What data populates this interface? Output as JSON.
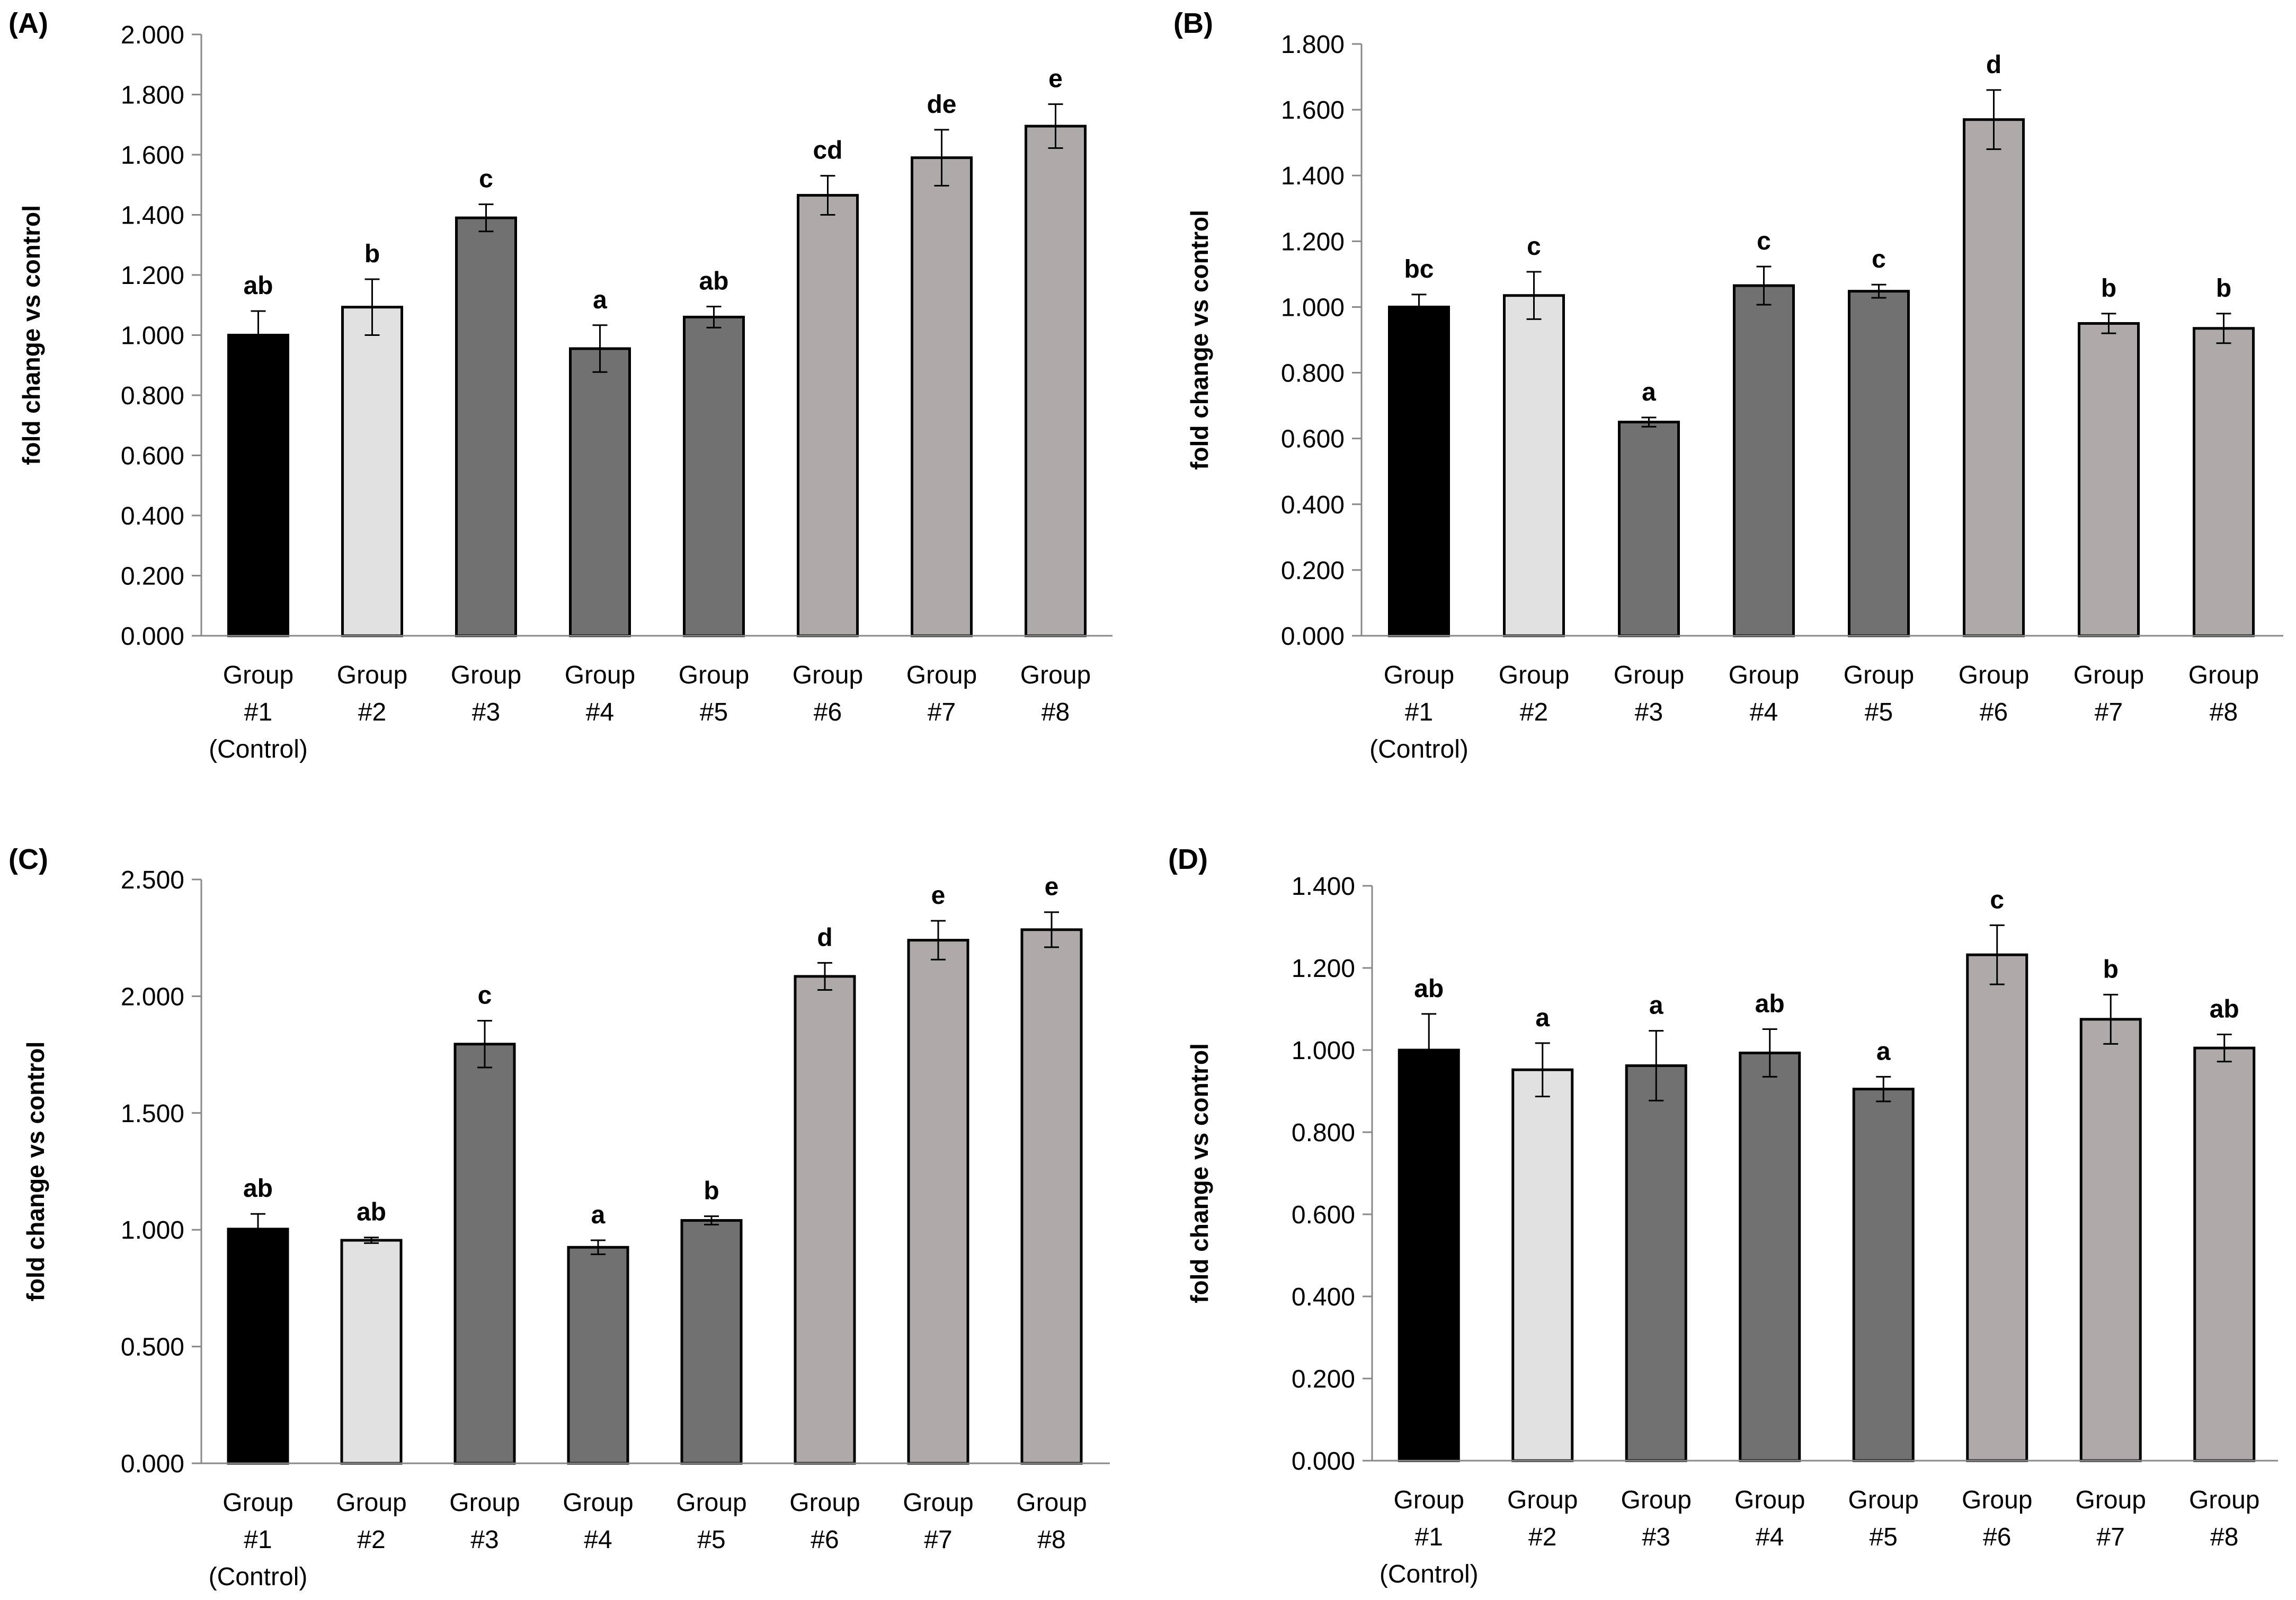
{
  "figure": {
    "colors": {
      "control": "#000000",
      "light": "#e1e1e1",
      "dark": "#717171",
      "medium": "#aeaaaa",
      "axis": "#888888",
      "text": "#000000"
    },
    "x_tick_labels": [
      [
        "Group",
        "#1",
        "(Control)"
      ],
      [
        "Group",
        "#2"
      ],
      [
        "Group",
        "#3"
      ],
      [
        "Group",
        "#4"
      ],
      [
        "Group",
        "#5"
      ],
      [
        "Group",
        "#6"
      ],
      [
        "Group",
        "#7"
      ],
      [
        "Group",
        "#8"
      ]
    ],
    "bar_color_keys": [
      "control",
      "light",
      "dark",
      "dark",
      "dark",
      "medium",
      "medium",
      "medium"
    ]
  },
  "chart_data": [
    {
      "panel": "(A)",
      "type": "bar",
      "ylabel": "fold change vs control",
      "ylim": [
        0,
        2.0
      ],
      "yticks": [
        "0.000",
        "0.200",
        "0.400",
        "0.600",
        "0.800",
        "1.000",
        "1.200",
        "1.400",
        "1.600",
        "1.800",
        "2.000"
      ],
      "categories": [
        "Group #1 (Control)",
        "Group #2",
        "Group #3",
        "Group #4",
        "Group #5",
        "Group #6",
        "Group #7",
        "Group #8"
      ],
      "values": [
        1.0,
        1.093,
        1.39,
        0.955,
        1.06,
        1.465,
        1.59,
        1.695
      ],
      "errors": [
        0.08,
        0.093,
        0.045,
        0.078,
        0.035,
        0.065,
        0.093,
        0.073
      ],
      "letters": [
        "ab",
        "b",
        "c",
        "a",
        "ab",
        "cd",
        "de",
        "e"
      ]
    },
    {
      "panel": "(B)",
      "type": "bar",
      "ylabel": "fold change vs control",
      "ylim": [
        0,
        1.8
      ],
      "yticks": [
        "0.000",
        "0.200",
        "0.400",
        "0.600",
        "0.800",
        "1.000",
        "1.200",
        "1.400",
        "1.600",
        "1.800"
      ],
      "categories": [
        "Group #1 (Control)",
        "Group #2",
        "Group #3",
        "Group #4",
        "Group #5",
        "Group #6",
        "Group #7",
        "Group #8"
      ],
      "values": [
        1.0,
        1.035,
        0.65,
        1.065,
        1.048,
        1.57,
        0.95,
        0.935
      ],
      "errors": [
        0.038,
        0.072,
        0.014,
        0.058,
        0.02,
        0.09,
        0.03,
        0.045
      ],
      "letters": [
        "bc",
        "c",
        "a",
        "c",
        "c",
        "d",
        "b",
        "b"
      ]
    },
    {
      "panel": "(C)",
      "type": "bar",
      "ylabel": "fold change vs control",
      "ylim": [
        0,
        2.5
      ],
      "yticks": [
        "0.000",
        "0.500",
        "1.000",
        "1.500",
        "2.000",
        "2.500"
      ],
      "categories": [
        "Group #1 (Control)",
        "Group #2",
        "Group #3",
        "Group #4",
        "Group #5",
        "Group #6",
        "Group #7",
        "Group #8"
      ],
      "values": [
        1.003,
        0.955,
        1.795,
        0.925,
        1.04,
        2.085,
        2.24,
        2.285
      ],
      "errors": [
        0.065,
        0.012,
        0.1,
        0.03,
        0.018,
        0.058,
        0.083,
        0.075
      ],
      "letters": [
        "ab",
        "ab",
        "c",
        "a",
        "b",
        "d",
        "e",
        "e"
      ]
    },
    {
      "panel": "(D)",
      "type": "bar",
      "ylabel": "fold change vs control",
      "ylim": [
        0,
        1.4
      ],
      "yticks": [
        "0.000",
        "0.200",
        "0.400",
        "0.600",
        "0.800",
        "1.000",
        "1.200",
        "1.400"
      ],
      "categories": [
        "Group #1 (Control)",
        "Group #2",
        "Group #3",
        "Group #4",
        "Group #5",
        "Group #6",
        "Group #7",
        "Group #8"
      ],
      "values": [
        1.0,
        0.952,
        0.962,
        0.993,
        0.905,
        1.232,
        1.075,
        1.005
      ],
      "errors": [
        0.088,
        0.065,
        0.085,
        0.058,
        0.03,
        0.072,
        0.06,
        0.033
      ],
      "letters": [
        "ab",
        "a",
        "a",
        "ab",
        "a",
        "c",
        "b",
        "ab"
      ]
    }
  ]
}
